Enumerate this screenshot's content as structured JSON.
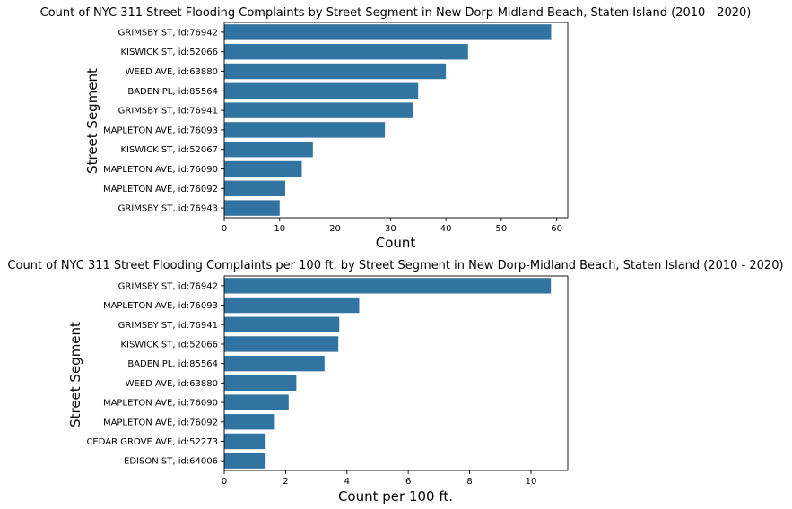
{
  "chart_data": [
    {
      "type": "bar",
      "orientation": "horizontal",
      "title": "Count of NYC 311 Street Flooding Complaints by Street Segment in New Dorp-Midland Beach, Staten Island (2010 - 2020)",
      "xlabel": "Count",
      "ylabel": "Street Segment",
      "xlim": [
        0,
        62
      ],
      "xticks": [
        0,
        10,
        20,
        30,
        40,
        50,
        60
      ],
      "bar_color": "#3274a1",
      "grid": false,
      "categories": [
        "GRIMSBY ST, id:76942",
        "KISWICK ST, id:52066",
        "WEED AVE, id:63880",
        "BADEN PL, id:85564",
        "GRIMSBY ST, id:76941",
        "MAPLETON AVE, id:76093",
        "KISWICK ST, id:52067",
        "MAPLETON AVE, id:76090",
        "MAPLETON AVE, id:76092",
        "GRIMSBY ST, id:76943"
      ],
      "values": [
        59,
        44,
        40,
        35,
        34,
        29,
        16,
        14,
        11,
        10
      ]
    },
    {
      "type": "bar",
      "orientation": "horizontal",
      "title": "Count of NYC 311 Street Flooding Complaints per 100 ft. by Street Segment in New Dorp-Midland Beach, Staten Island (2010 - 2020)",
      "xlabel": "Count per 100 ft.",
      "ylabel": "Street Segment",
      "xlim": [
        0,
        11.2
      ],
      "xticks": [
        0,
        2,
        4,
        6,
        8,
        10
      ],
      "bar_color": "#3274a1",
      "grid": false,
      "categories": [
        "GRIMSBY ST, id:76942",
        "MAPLETON AVE, id:76093",
        "GRIMSBY ST, id:76941",
        "KISWICK ST, id:52066",
        "BADEN PL, id:85564",
        "WEED AVE, id:63880",
        "MAPLETON AVE, id:76090",
        "MAPLETON AVE, id:76092",
        "CEDAR GROVE AVE, id:52273",
        "EDISON ST, id:64006"
      ],
      "values": [
        10.65,
        4.4,
        3.75,
        3.72,
        3.27,
        2.35,
        2.1,
        1.65,
        1.35,
        1.35
      ]
    }
  ]
}
